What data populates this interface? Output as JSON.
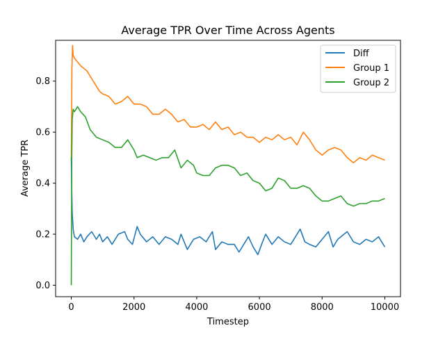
{
  "chart_data": {
    "type": "line",
    "title": "Average TPR Over Time Across Agents",
    "xlabel": "Timestep",
    "ylabel": "Average TPR",
    "xlim": [
      -500,
      10500
    ],
    "ylim": [
      -0.045,
      0.96
    ],
    "xticks": [
      0,
      2000,
      4000,
      6000,
      8000,
      10000
    ],
    "yticks": [
      0.0,
      0.2,
      0.4,
      0.6,
      0.8
    ],
    "xtick_labels": [
      "0",
      "2000",
      "4000",
      "6000",
      "8000",
      "10000"
    ],
    "ytick_labels": [
      "0.0",
      "0.2",
      "0.4",
      "0.6",
      "0.8"
    ],
    "legend_position": "top-right",
    "grid": false,
    "series": [
      {
        "name": "Diff",
        "color": "#1f77b4",
        "points": [
          [
            0,
            0.5
          ],
          [
            10,
            0.4
          ],
          [
            30,
            0.28
          ],
          [
            60,
            0.22
          ],
          [
            100,
            0.19
          ],
          [
            200,
            0.18
          ],
          [
            300,
            0.2
          ],
          [
            400,
            0.17
          ],
          [
            500,
            0.19
          ],
          [
            650,
            0.21
          ],
          [
            800,
            0.18
          ],
          [
            900,
            0.2
          ],
          [
            1000,
            0.17
          ],
          [
            1150,
            0.19
          ],
          [
            1300,
            0.16
          ],
          [
            1500,
            0.2
          ],
          [
            1700,
            0.21
          ],
          [
            1800,
            0.18
          ],
          [
            1950,
            0.16
          ],
          [
            2100,
            0.23
          ],
          [
            2200,
            0.2
          ],
          [
            2400,
            0.17
          ],
          [
            2600,
            0.19
          ],
          [
            2800,
            0.16
          ],
          [
            3000,
            0.19
          ],
          [
            3200,
            0.18
          ],
          [
            3400,
            0.16
          ],
          [
            3500,
            0.2
          ],
          [
            3700,
            0.14
          ],
          [
            3900,
            0.18
          ],
          [
            4100,
            0.19
          ],
          [
            4300,
            0.17
          ],
          [
            4500,
            0.21
          ],
          [
            4600,
            0.14
          ],
          [
            4800,
            0.17
          ],
          [
            5000,
            0.16
          ],
          [
            5200,
            0.16
          ],
          [
            5350,
            0.13
          ],
          [
            5500,
            0.16
          ],
          [
            5650,
            0.19
          ],
          [
            5800,
            0.15
          ],
          [
            5950,
            0.12
          ],
          [
            6100,
            0.17
          ],
          [
            6200,
            0.2
          ],
          [
            6400,
            0.16
          ],
          [
            6600,
            0.19
          ],
          [
            6800,
            0.17
          ],
          [
            7000,
            0.16
          ],
          [
            7200,
            0.2
          ],
          [
            7300,
            0.22
          ],
          [
            7450,
            0.17
          ],
          [
            7600,
            0.16
          ],
          [
            7800,
            0.15
          ],
          [
            8000,
            0.18
          ],
          [
            8200,
            0.21
          ],
          [
            8350,
            0.15
          ],
          [
            8500,
            0.18
          ],
          [
            8700,
            0.2
          ],
          [
            8800,
            0.21
          ],
          [
            9000,
            0.17
          ],
          [
            9200,
            0.16
          ],
          [
            9400,
            0.18
          ],
          [
            9600,
            0.17
          ],
          [
            9800,
            0.19
          ],
          [
            9900,
            0.17
          ],
          [
            10000,
            0.15
          ]
        ]
      },
      {
        "name": "Group 1",
        "color": "#ff7f0e",
        "points": [
          [
            0,
            0.5
          ],
          [
            20,
            0.85
          ],
          [
            40,
            0.94
          ],
          [
            60,
            0.9
          ],
          [
            100,
            0.89
          ],
          [
            300,
            0.86
          ],
          [
            500,
            0.84
          ],
          [
            700,
            0.8
          ],
          [
            900,
            0.76
          ],
          [
            1000,
            0.75
          ],
          [
            1200,
            0.74
          ],
          [
            1400,
            0.71
          ],
          [
            1600,
            0.72
          ],
          [
            1800,
            0.74
          ],
          [
            2000,
            0.71
          ],
          [
            2200,
            0.71
          ],
          [
            2400,
            0.7
          ],
          [
            2600,
            0.67
          ],
          [
            2800,
            0.67
          ],
          [
            3000,
            0.69
          ],
          [
            3200,
            0.67
          ],
          [
            3400,
            0.64
          ],
          [
            3600,
            0.65
          ],
          [
            3800,
            0.62
          ],
          [
            4000,
            0.62
          ],
          [
            4200,
            0.63
          ],
          [
            4400,
            0.61
          ],
          [
            4600,
            0.64
          ],
          [
            4800,
            0.61
          ],
          [
            5000,
            0.62
          ],
          [
            5200,
            0.59
          ],
          [
            5400,
            0.6
          ],
          [
            5600,
            0.58
          ],
          [
            5800,
            0.58
          ],
          [
            6000,
            0.56
          ],
          [
            6200,
            0.58
          ],
          [
            6400,
            0.57
          ],
          [
            6600,
            0.59
          ],
          [
            6800,
            0.57
          ],
          [
            7000,
            0.58
          ],
          [
            7200,
            0.55
          ],
          [
            7400,
            0.6
          ],
          [
            7600,
            0.57
          ],
          [
            7800,
            0.53
          ],
          [
            8000,
            0.51
          ],
          [
            8200,
            0.53
          ],
          [
            8400,
            0.54
          ],
          [
            8600,
            0.53
          ],
          [
            8800,
            0.5
          ],
          [
            9000,
            0.48
          ],
          [
            9200,
            0.5
          ],
          [
            9400,
            0.49
          ],
          [
            9600,
            0.51
          ],
          [
            9800,
            0.5
          ],
          [
            10000,
            0.49
          ]
        ]
      },
      {
        "name": "Group 2",
        "color": "#2ca02c",
        "points": [
          [
            0,
            0.0
          ],
          [
            15,
            0.5
          ],
          [
            30,
            0.65
          ],
          [
            60,
            0.69
          ],
          [
            100,
            0.68
          ],
          [
            200,
            0.7
          ],
          [
            300,
            0.68
          ],
          [
            450,
            0.66
          ],
          [
            600,
            0.61
          ],
          [
            800,
            0.58
          ],
          [
            1000,
            0.57
          ],
          [
            1200,
            0.56
          ],
          [
            1400,
            0.54
          ],
          [
            1600,
            0.54
          ],
          [
            1800,
            0.57
          ],
          [
            2000,
            0.53
          ],
          [
            2100,
            0.5
          ],
          [
            2300,
            0.51
          ],
          [
            2500,
            0.5
          ],
          [
            2700,
            0.49
          ],
          [
            2900,
            0.5
          ],
          [
            3100,
            0.5
          ],
          [
            3300,
            0.53
          ],
          [
            3500,
            0.46
          ],
          [
            3700,
            0.49
          ],
          [
            3900,
            0.47
          ],
          [
            4000,
            0.44
          ],
          [
            4200,
            0.43
          ],
          [
            4400,
            0.43
          ],
          [
            4600,
            0.46
          ],
          [
            4800,
            0.47
          ],
          [
            5000,
            0.47
          ],
          [
            5200,
            0.46
          ],
          [
            5400,
            0.43
          ],
          [
            5600,
            0.44
          ],
          [
            5800,
            0.41
          ],
          [
            6000,
            0.4
          ],
          [
            6200,
            0.37
          ],
          [
            6400,
            0.38
          ],
          [
            6600,
            0.42
          ],
          [
            6800,
            0.41
          ],
          [
            7000,
            0.38
          ],
          [
            7200,
            0.38
          ],
          [
            7400,
            0.39
          ],
          [
            7600,
            0.38
          ],
          [
            7800,
            0.35
          ],
          [
            8000,
            0.33
          ],
          [
            8200,
            0.33
          ],
          [
            8400,
            0.34
          ],
          [
            8600,
            0.35
          ],
          [
            8800,
            0.32
          ],
          [
            9000,
            0.31
          ],
          [
            9200,
            0.32
          ],
          [
            9400,
            0.32
          ],
          [
            9600,
            0.33
          ],
          [
            9800,
            0.33
          ],
          [
            10000,
            0.34
          ]
        ]
      }
    ]
  }
}
